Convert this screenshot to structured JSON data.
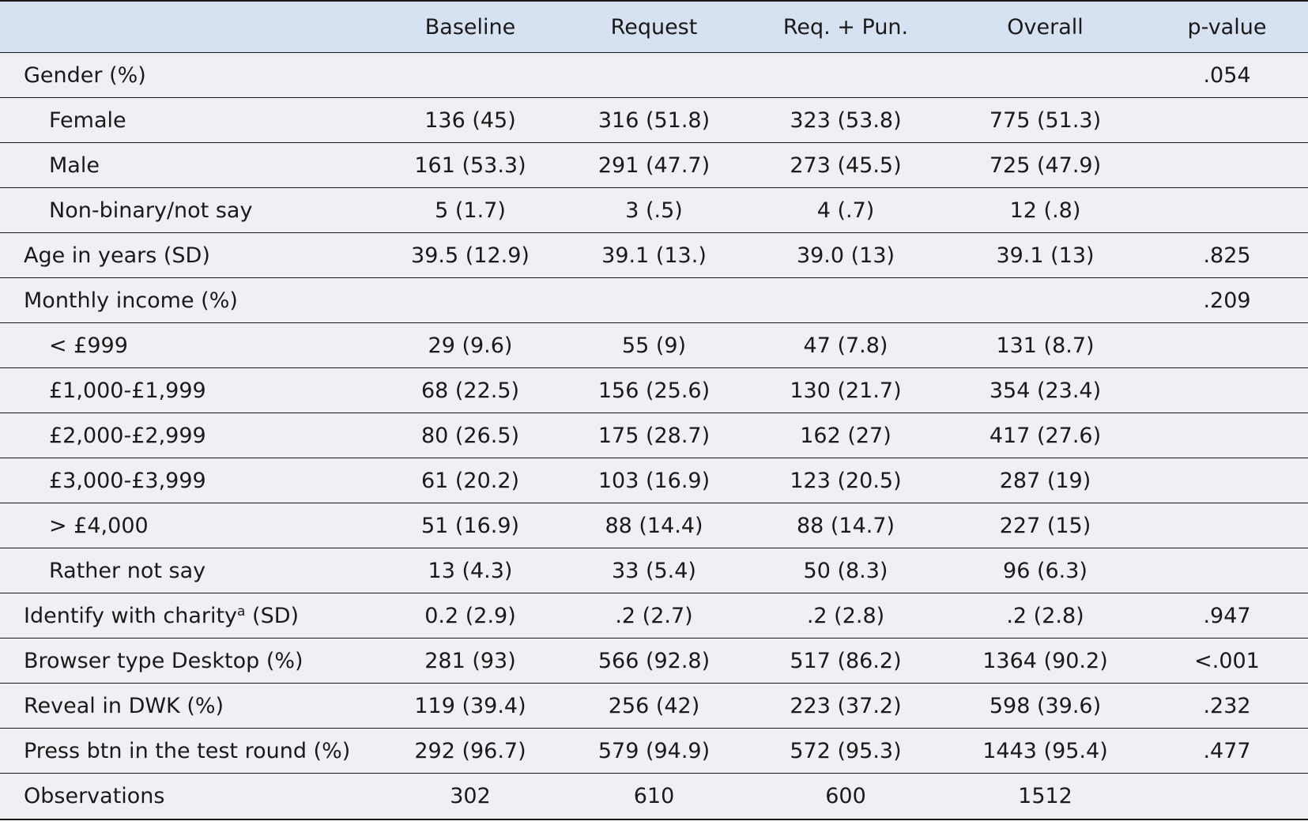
{
  "header": [
    "",
    "Baseline",
    "Request",
    "Req. + Pun.",
    "Overall",
    "p-value"
  ],
  "rows": [
    {
      "label": "Gender (%)",
      "sub": false,
      "cells": [
        "",
        "",
        "",
        "",
        ".054"
      ]
    },
    {
      "label": "Female",
      "sub": true,
      "cells": [
        "136 (45)",
        "316 (51.8)",
        "323 (53.8)",
        "775 (51.3)",
        ""
      ]
    },
    {
      "label": "Male",
      "sub": true,
      "cells": [
        "161 (53.3)",
        "291 (47.7)",
        "273 (45.5)",
        "725 (47.9)",
        ""
      ]
    },
    {
      "label": "Non-binary/not say",
      "sub": true,
      "cells": [
        "5 (1.7)",
        "3 (.5)",
        "4 (.7)",
        "12 (.8)",
        ""
      ]
    },
    {
      "label": "Age in years (SD)",
      "sub": false,
      "cells": [
        "39.5 (12.9)",
        "39.1 (13.)",
        "39.0 (13)",
        "39.1 (13)",
        ".825"
      ]
    },
    {
      "label": "Monthly income (%)",
      "sub": false,
      "cells": [
        "",
        "",
        "",
        "",
        ".209"
      ]
    },
    {
      "label": "< £999",
      "sub": true,
      "cells": [
        "29 (9.6)",
        "55 (9)",
        "47 (7.8)",
        "131 (8.7)",
        ""
      ]
    },
    {
      "label": "£1,000-£1,999",
      "sub": true,
      "cells": [
        "68 (22.5)",
        "156 (25.6)",
        "130 (21.7)",
        "354 (23.4)",
        ""
      ]
    },
    {
      "label": "£2,000-£2,999",
      "sub": true,
      "cells": [
        "80 (26.5)",
        "175 (28.7)",
        "162 (27)",
        "417 (27.6)",
        ""
      ]
    },
    {
      "label": "£3,000-£3,999",
      "sub": true,
      "cells": [
        "61 (20.2)",
        "103 (16.9)",
        "123 (20.5)",
        "287 (19)",
        ""
      ]
    },
    {
      "label": "> £4,000",
      "sub": true,
      "cells": [
        "51 (16.9)",
        "88 (14.4)",
        "88 (14.7)",
        "227 (15)",
        ""
      ]
    },
    {
      "label": "Rather not say",
      "sub": true,
      "cells": [
        "13 (4.3)",
        "33 (5.4)",
        "50 (8.3)",
        "96 (6.3)",
        ""
      ]
    },
    {
      "label": "Identify with charity",
      "label_sup": "a",
      "label_suffix": " (SD)",
      "sub": false,
      "cells": [
        "0.2 (2.9)",
        ".2 (2.7)",
        ".2 (2.8)",
        ".2 (2.8)",
        ".947"
      ]
    },
    {
      "label": "Browser type Desktop (%)",
      "sub": false,
      "cells": [
        "281 (93)",
        "566 (92.8)",
        "517 (86.2)",
        "1364 (90.2)",
        "<.001"
      ]
    },
    {
      "label": "Reveal in DWK (%)",
      "sub": false,
      "cells": [
        "119 (39.4)",
        "256 (42)",
        "223 (37.2)",
        "598 (39.6)",
        ".232"
      ]
    },
    {
      "label": "Press btn in the test round (%)",
      "sub": false,
      "cells": [
        "292 (96.7)",
        "579 (94.9)",
        "572 (95.3)",
        "1443 (95.4)",
        ".477"
      ]
    },
    {
      "label": "Observations",
      "sub": false,
      "cells": [
        "302",
        "610",
        "600",
        "1512",
        ""
      ]
    }
  ]
}
